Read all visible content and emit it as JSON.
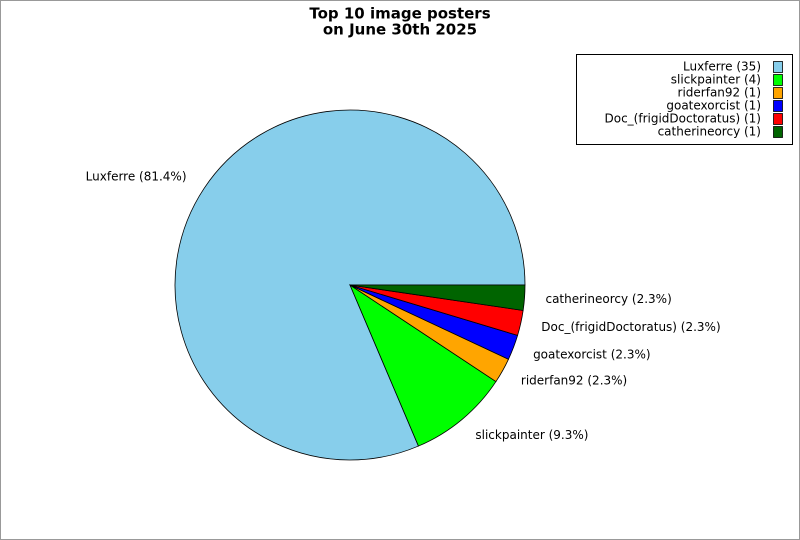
{
  "chart_data": {
    "type": "pie",
    "title": [
      "Top 10 image posters",
      "on June 30th 2025"
    ],
    "labels": [
      "Luxferre (35)",
      "slickpainter (4)",
      "riderfan92 (1)",
      "goatexorcist (1)",
      "Doc_(frigidDoctoratus) (1)",
      "catherineorcy (1)"
    ],
    "slice_labels": [
      "Luxferre (81.4%)",
      "slickpainter (9.3%)",
      "riderfan92 (2.3%)",
      "goatexorcist (2.3%)",
      "Doc_(frigidDoctoratus) (2.3%)",
      "catherineorcy (2.3%)"
    ],
    "values": [
      35,
      4,
      1,
      1,
      1,
      1
    ],
    "colors": [
      "#87ceeb",
      "#00ff00",
      "#ffa500",
      "#0000ff",
      "#ff0000",
      "#006400"
    ],
    "legend": "upper right"
  }
}
